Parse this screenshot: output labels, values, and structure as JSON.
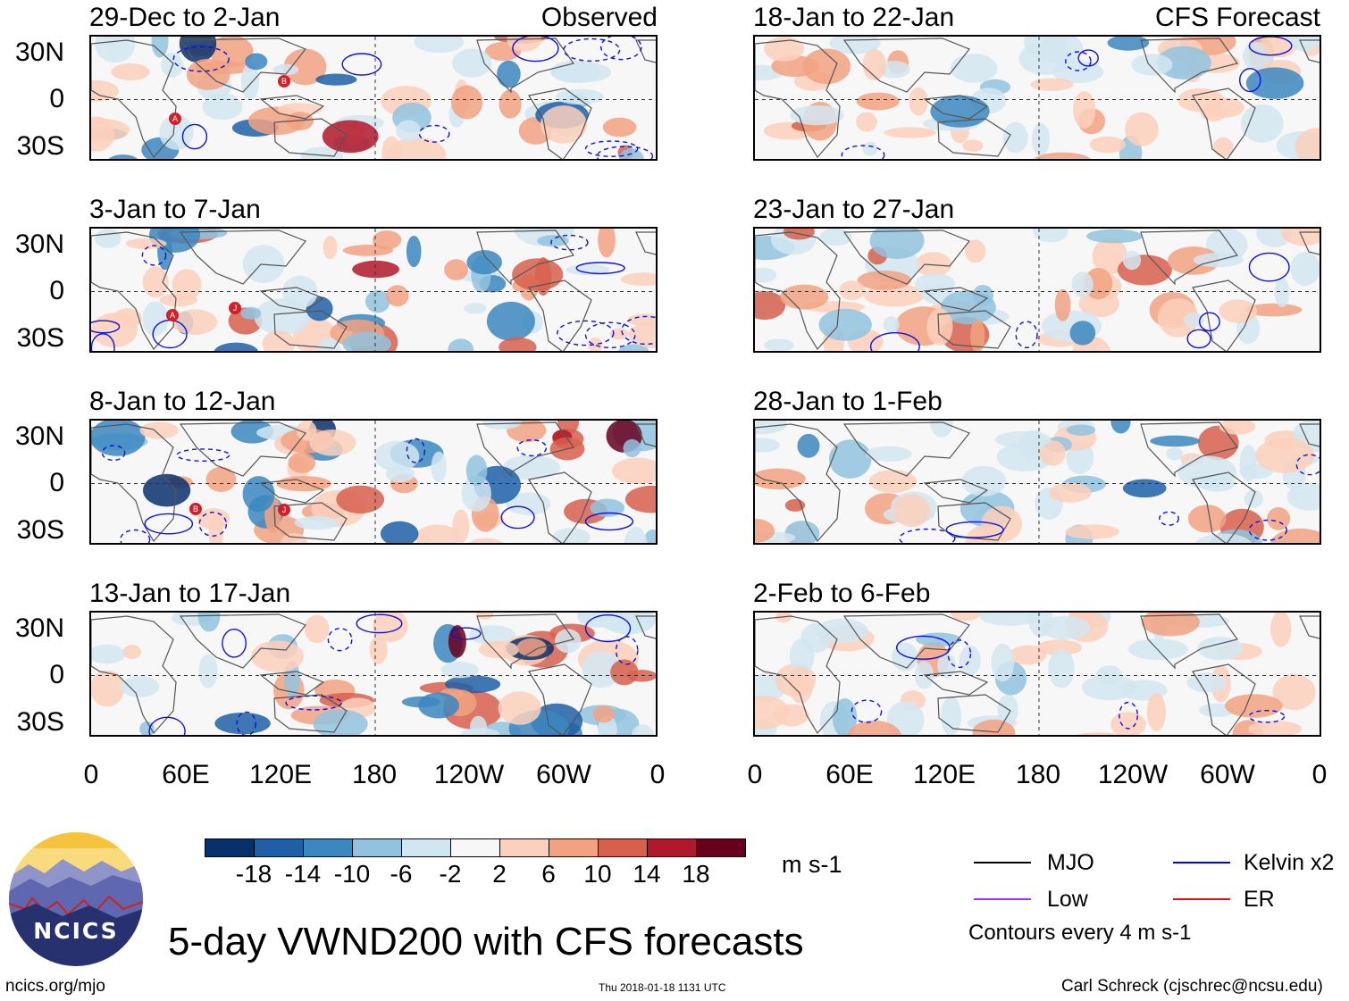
{
  "left_column": {
    "header_label": "Observed",
    "panels": [
      {
        "title": "29-Dec to 2-Jan"
      },
      {
        "title": "3-Jan to 7-Jan"
      },
      {
        "title": "8-Jan to 12-Jan"
      },
      {
        "title": "13-Jan to 17-Jan"
      }
    ]
  },
  "right_column": {
    "header_label": "CFS Forecast",
    "panels": [
      {
        "title": "18-Jan to 22-Jan"
      },
      {
        "title": "23-Jan to 27-Jan"
      },
      {
        "title": "28-Jan to 1-Feb"
      },
      {
        "title": "2-Feb to 6-Feb"
      }
    ]
  },
  "latitude_labels": [
    "30N",
    "0",
    "30S"
  ],
  "longitude_labels": [
    "0",
    "60E",
    "120E",
    "180",
    "120W",
    "60W",
    "0"
  ],
  "storm_markers": {
    "panel_1": [
      "A",
      "B"
    ],
    "panel_2": [
      "A",
      "J"
    ],
    "panel_3": [
      "B",
      "J"
    ]
  },
  "colorbar": {
    "ticks": [
      "-18",
      "-14",
      "-10",
      "-6",
      "-2",
      "2",
      "6",
      "10",
      "14",
      "18"
    ],
    "colors": [
      "#08306b",
      "#1f5fa8",
      "#3b87c0",
      "#92c3de",
      "#d2e6f1",
      "#f7f7f7",
      "#fbd0bc",
      "#f2a281",
      "#d7604d",
      "#b2182b",
      "#67001f"
    ],
    "units": "m s-1"
  },
  "legend": {
    "items": [
      {
        "label": "MJO",
        "color": "#000000"
      },
      {
        "label": "Kelvin x2",
        "color": "#0000e0"
      },
      {
        "label": "Low",
        "color": "#9b30ff"
      },
      {
        "label": "ER",
        "color": "#e01010"
      }
    ],
    "contour_note": "Contours every 4 m s-1"
  },
  "logo_text": "NCICS",
  "main_title": "5-day VWND200 with CFS forecasts",
  "footer": {
    "url": "ncics.org/mjo",
    "timestamp": "Thu 2018-01-18 1131 UTC",
    "credit": "Carl Schreck (cjschrec@ncsu.edu)"
  }
}
